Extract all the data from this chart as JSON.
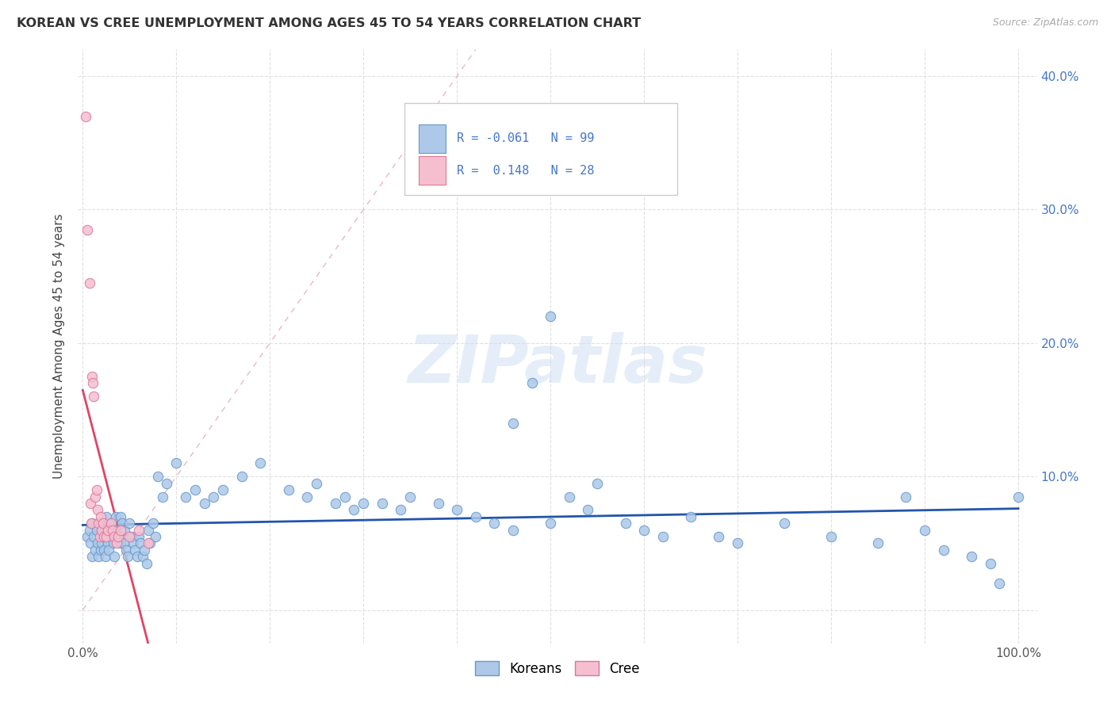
{
  "title": "KOREAN VS CREE UNEMPLOYMENT AMONG AGES 45 TO 54 YEARS CORRELATION CHART",
  "source": "Source: ZipAtlas.com",
  "ylabel": "Unemployment Among Ages 45 to 54 years",
  "xlim": [
    -0.005,
    1.02
  ],
  "ylim": [
    -0.025,
    0.42
  ],
  "xtick_positions": [
    0.0,
    0.1,
    0.2,
    0.3,
    0.4,
    0.5,
    0.6,
    0.7,
    0.8,
    0.9,
    1.0
  ],
  "xticklabels": [
    "0.0%",
    "",
    "",
    "",
    "",
    "",
    "",
    "",
    "",
    "",
    "100.0%"
  ],
  "ytick_positions": [
    0.0,
    0.1,
    0.2,
    0.3,
    0.4
  ],
  "yticklabels_right": [
    "",
    "10.0%",
    "20.0%",
    "30.0%",
    "40.0%"
  ],
  "korean_face_color": "#adc8e8",
  "korean_edge_color": "#6699cc",
  "cree_face_color": "#f5bfd0",
  "cree_edge_color": "#dd7799",
  "korean_line_color": "#2255aa",
  "cree_line_color": "#e04466",
  "diag_color": "#e8aabb",
  "tick_color": "#4477cc",
  "grid_color": "#dddddd",
  "watermark": "ZIPatlas",
  "watermark_color": "#ccddf5",
  "legend_R_korean": "-0.061",
  "legend_N_korean": 99,
  "legend_R_cree": "0.148",
  "legend_N_cree": 28,
  "background_color": "#ffffff",
  "korean_x": [
    0.005,
    0.007,
    0.008,
    0.01,
    0.01,
    0.012,
    0.013,
    0.015,
    0.016,
    0.017,
    0.018,
    0.019,
    0.02,
    0.02,
    0.022,
    0.023,
    0.024,
    0.025,
    0.026,
    0.027,
    0.028,
    0.03,
    0.03,
    0.032,
    0.033,
    0.034,
    0.035,
    0.036,
    0.038,
    0.04,
    0.04,
    0.042,
    0.044,
    0.045,
    0.046,
    0.048,
    0.05,
    0.052,
    0.054,
    0.056,
    0.058,
    0.06,
    0.062,
    0.064,
    0.066,
    0.068,
    0.07,
    0.072,
    0.075,
    0.078,
    0.08,
    0.085,
    0.09,
    0.1,
    0.11,
    0.12,
    0.13,
    0.14,
    0.15,
    0.17,
    0.19,
    0.22,
    0.24,
    0.25,
    0.27,
    0.28,
    0.29,
    0.3,
    0.32,
    0.34,
    0.35,
    0.38,
    0.4,
    0.42,
    0.44,
    0.46,
    0.5,
    0.5,
    0.52,
    0.54,
    0.55,
    0.58,
    0.6,
    0.62,
    0.65,
    0.68,
    0.7,
    0.75,
    0.8,
    0.85,
    0.88,
    0.9,
    0.92,
    0.95,
    0.97,
    0.98,
    1.0,
    0.46,
    0.48
  ],
  "korean_y": [
    0.055,
    0.06,
    0.05,
    0.065,
    0.04,
    0.055,
    0.045,
    0.06,
    0.05,
    0.04,
    0.065,
    0.045,
    0.06,
    0.05,
    0.055,
    0.045,
    0.04,
    0.07,
    0.06,
    0.05,
    0.045,
    0.065,
    0.055,
    0.06,
    0.05,
    0.04,
    0.07,
    0.06,
    0.055,
    0.07,
    0.05,
    0.065,
    0.05,
    0.06,
    0.045,
    0.04,
    0.065,
    0.055,
    0.05,
    0.045,
    0.04,
    0.055,
    0.05,
    0.04,
    0.045,
    0.035,
    0.06,
    0.05,
    0.065,
    0.055,
    0.1,
    0.085,
    0.095,
    0.11,
    0.085,
    0.09,
    0.08,
    0.085,
    0.09,
    0.1,
    0.11,
    0.09,
    0.085,
    0.095,
    0.08,
    0.085,
    0.075,
    0.08,
    0.08,
    0.075,
    0.085,
    0.08,
    0.075,
    0.07,
    0.065,
    0.06,
    0.22,
    0.065,
    0.085,
    0.075,
    0.095,
    0.065,
    0.06,
    0.055,
    0.07,
    0.055,
    0.05,
    0.065,
    0.055,
    0.05,
    0.085,
    0.06,
    0.045,
    0.04,
    0.035,
    0.02,
    0.085,
    0.14,
    0.17
  ],
  "cree_x": [
    0.003,
    0.005,
    0.007,
    0.008,
    0.009,
    0.01,
    0.011,
    0.012,
    0.013,
    0.015,
    0.016,
    0.017,
    0.018,
    0.019,
    0.02,
    0.022,
    0.023,
    0.025,
    0.027,
    0.03,
    0.032,
    0.034,
    0.036,
    0.038,
    0.04,
    0.05,
    0.06,
    0.07
  ],
  "cree_y": [
    0.37,
    0.285,
    0.245,
    0.08,
    0.065,
    0.175,
    0.17,
    0.16,
    0.085,
    0.09,
    0.075,
    0.065,
    0.055,
    0.07,
    0.06,
    0.065,
    0.055,
    0.055,
    0.06,
    0.065,
    0.06,
    0.055,
    0.05,
    0.055,
    0.06,
    0.055,
    0.06,
    0.05
  ]
}
